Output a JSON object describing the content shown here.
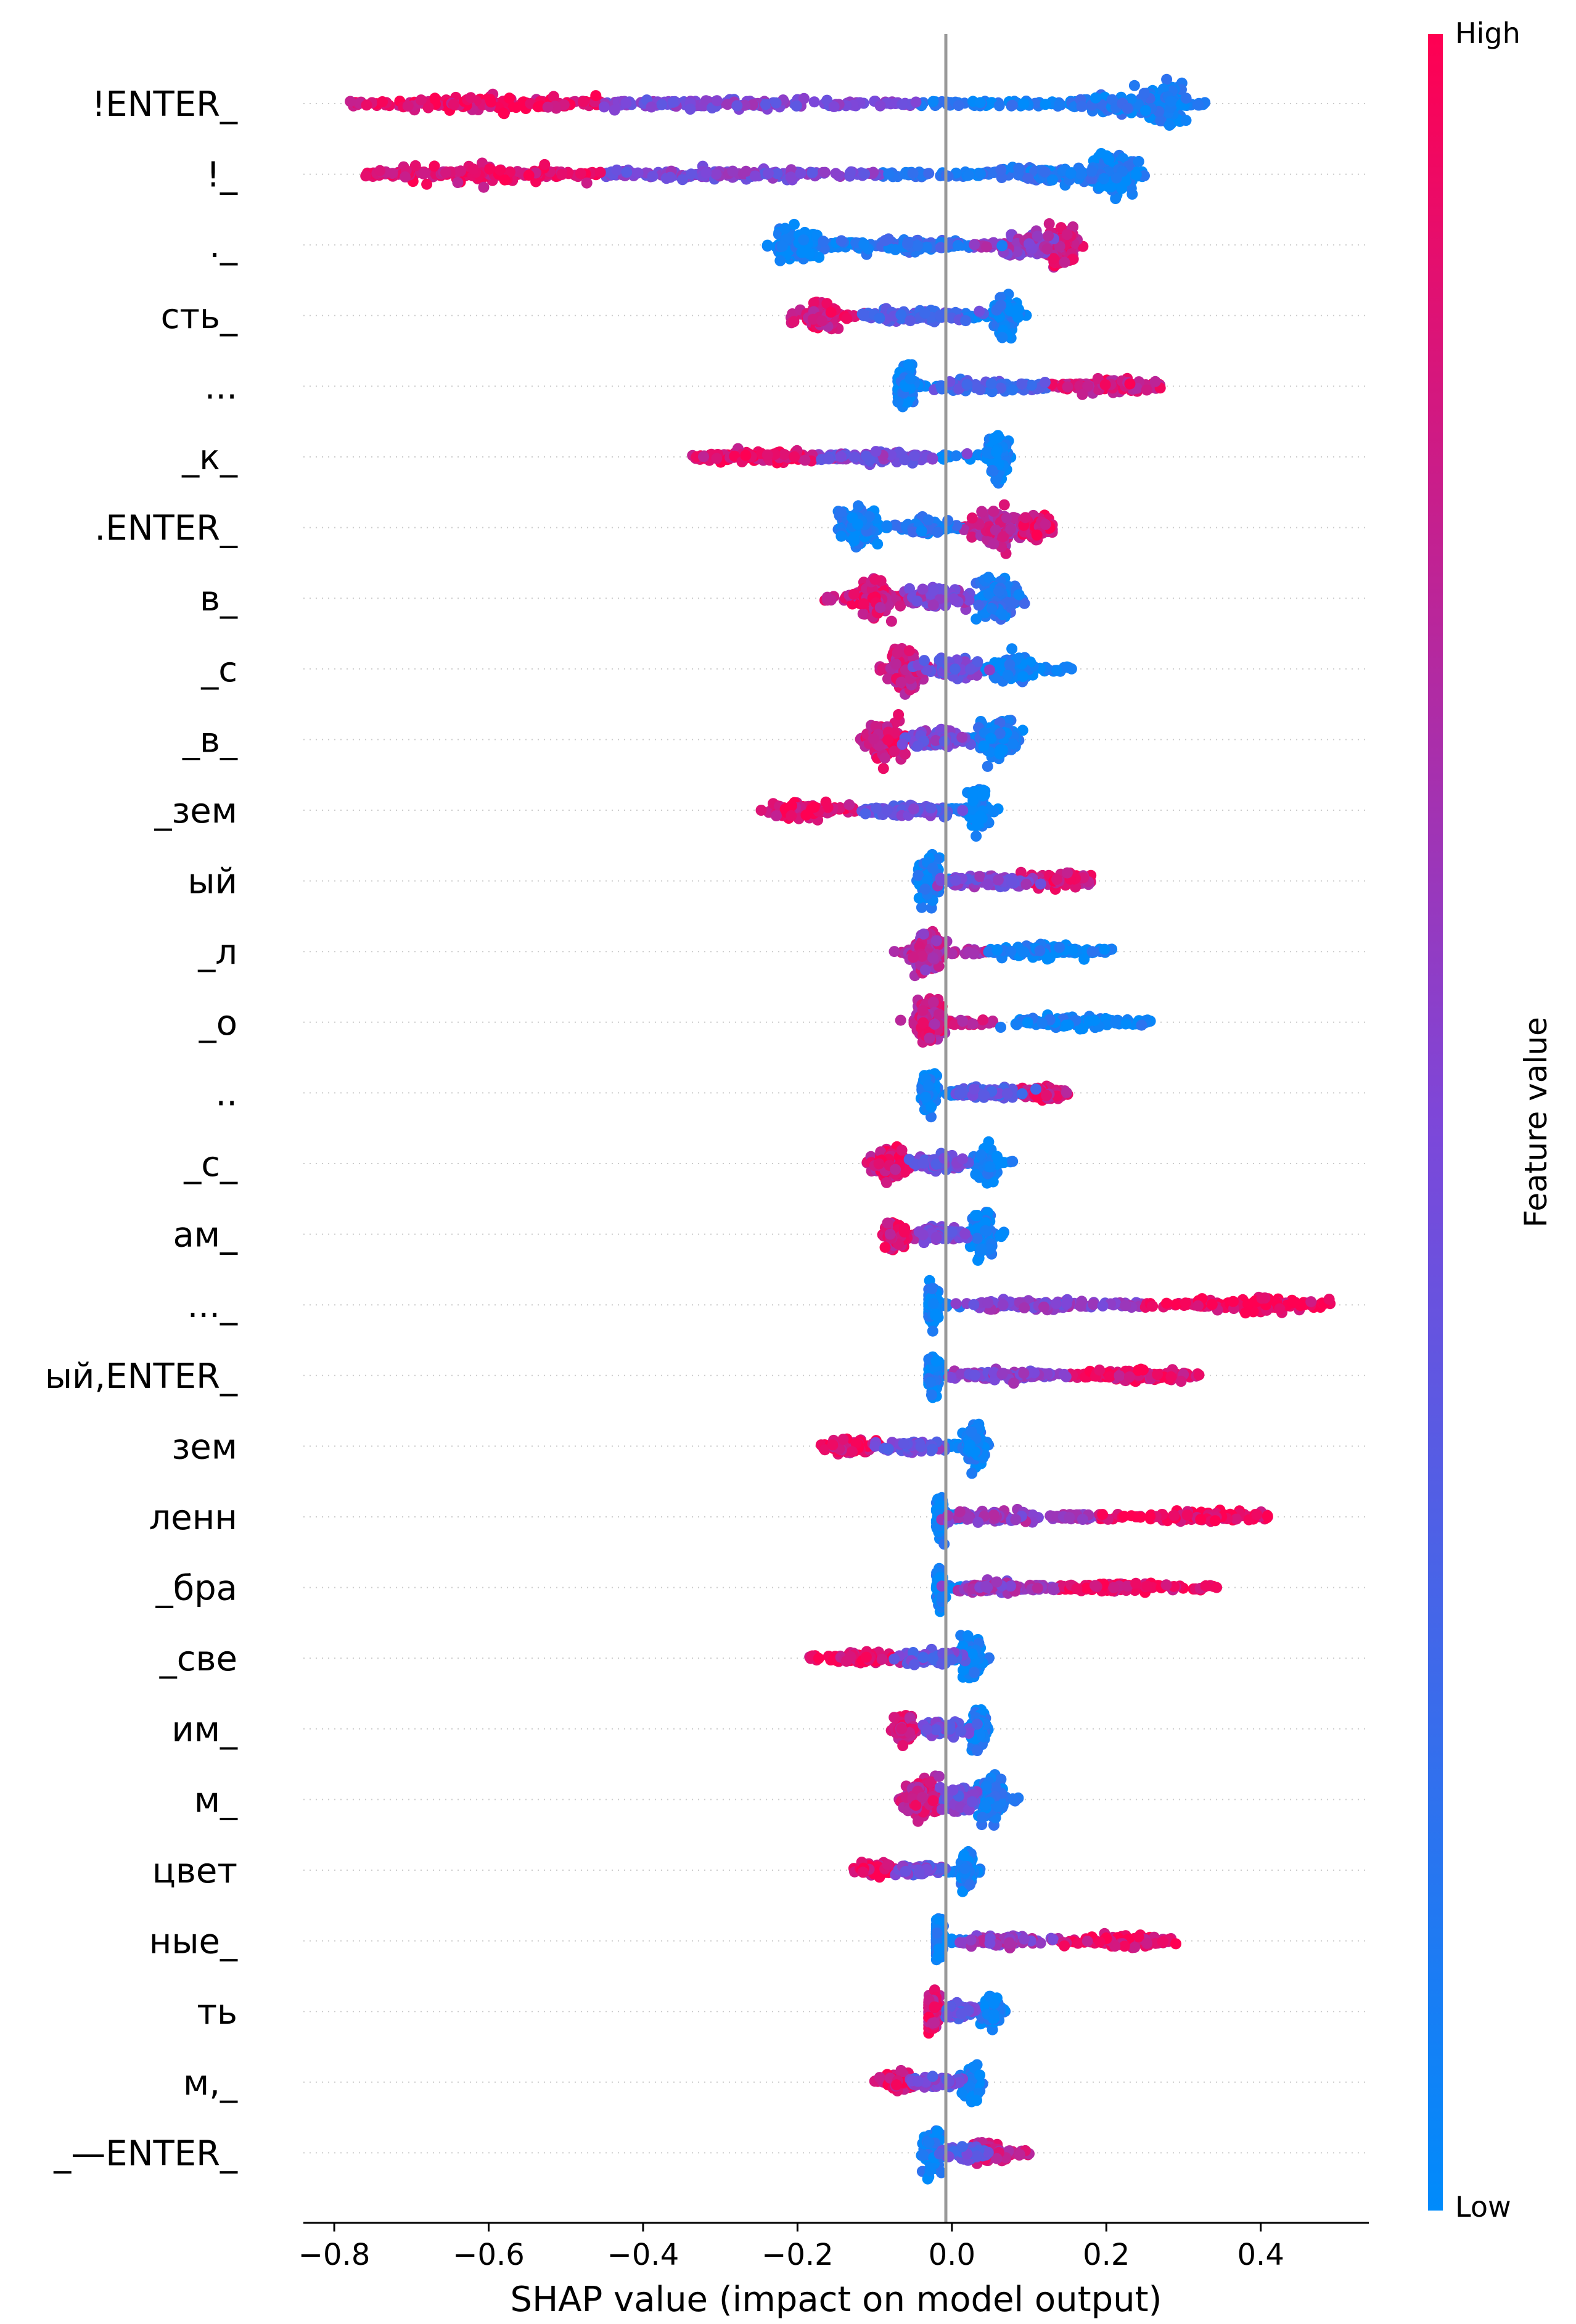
{
  "chart_data": {
    "type": "scatter",
    "subtype": "shap-beeswarm",
    "title": "",
    "xlabel": "SHAP value (impact on model output)",
    "ylabel": "",
    "xlim": [
      -0.84,
      0.54
    ],
    "xticks": [
      -0.8,
      -0.6,
      -0.4,
      -0.2,
      0.0,
      0.2,
      0.4
    ],
    "xtick_labels": [
      "−0.8",
      "−0.6",
      "−0.4",
      "−0.2",
      "0.0",
      "0.2",
      "0.4"
    ],
    "colorbar": {
      "label": "Feature value",
      "high_label": "High",
      "low_label": "Low",
      "low_color": "#008bfb",
      "high_color": "#ff0052"
    },
    "features": [
      {
        "name": "!ENTER_",
        "xmin": -0.78,
        "xmax": 0.33,
        "core": [
          {
            "x": 0.28,
            "w": 0.03,
            "h": 0.85,
            "c": 0.05
          },
          {
            "x": 0.22,
            "w": 0.06,
            "h": 0.45,
            "c": 0.1
          },
          {
            "x": -0.6,
            "w": 0.12,
            "h": 0.4,
            "c": 0.9
          },
          {
            "x": -0.3,
            "w": 0.15,
            "h": 0.25,
            "c": 0.5
          }
        ]
      },
      {
        "name": "!_",
        "xmin": -0.76,
        "xmax": 0.25,
        "core": [
          {
            "x": 0.21,
            "w": 0.03,
            "h": 0.85,
            "c": 0.05
          },
          {
            "x": 0.12,
            "w": 0.06,
            "h": 0.4,
            "c": 0.15
          },
          {
            "x": -0.6,
            "w": 0.12,
            "h": 0.4,
            "c": 0.9
          },
          {
            "x": -0.3,
            "w": 0.15,
            "h": 0.25,
            "c": 0.5
          }
        ]
      },
      {
        "name": "._",
        "xmin": -0.24,
        "xmax": 0.17,
        "core": [
          {
            "x": 0.14,
            "w": 0.02,
            "h": 0.85,
            "c": 0.85
          },
          {
            "x": 0.1,
            "w": 0.03,
            "h": 0.5,
            "c": 0.6
          },
          {
            "x": -0.2,
            "w": 0.03,
            "h": 0.75,
            "c": 0.05
          },
          {
            "x": -0.05,
            "w": 0.08,
            "h": 0.3,
            "c": 0.2
          }
        ]
      },
      {
        "name": "сть_",
        "xmin": -0.21,
        "xmax": 0.1,
        "core": [
          {
            "x": 0.07,
            "w": 0.015,
            "h": 0.85,
            "c": 0.05
          },
          {
            "x": -0.17,
            "w": 0.025,
            "h": 0.55,
            "c": 0.85
          },
          {
            "x": -0.05,
            "w": 0.08,
            "h": 0.25,
            "c": 0.35
          }
        ]
      },
      {
        "name": "...",
        "xmin": -0.07,
        "xmax": 0.27,
        "core": [
          {
            "x": -0.06,
            "w": 0.012,
            "h": 0.85,
            "c": 0.05
          },
          {
            "x": 0.2,
            "w": 0.05,
            "h": 0.3,
            "c": 0.85
          },
          {
            "x": 0.05,
            "w": 0.08,
            "h": 0.25,
            "c": 0.3
          }
        ]
      },
      {
        "name": "_к_",
        "xmin": -0.34,
        "xmax": 0.08,
        "core": [
          {
            "x": 0.06,
            "w": 0.012,
            "h": 0.85,
            "c": 0.05
          },
          {
            "x": -0.25,
            "w": 0.08,
            "h": 0.3,
            "c": 0.9
          },
          {
            "x": -0.1,
            "w": 0.08,
            "h": 0.25,
            "c": 0.5
          }
        ]
      },
      {
        "name": ".ENTER_",
        "xmin": -0.15,
        "xmax": 0.13,
        "core": [
          {
            "x": -0.12,
            "w": 0.025,
            "h": 0.85,
            "c": 0.05
          },
          {
            "x": 0.06,
            "w": 0.03,
            "h": 0.85,
            "c": 0.75
          },
          {
            "x": 0.11,
            "w": 0.02,
            "h": 0.45,
            "c": 0.9
          },
          {
            "x": -0.03,
            "w": 0.03,
            "h": 0.35,
            "c": 0.15
          }
        ]
      },
      {
        "name": "в_",
        "xmin": -0.17,
        "xmax": 0.1,
        "core": [
          {
            "x": -0.1,
            "w": 0.025,
            "h": 0.75,
            "c": 0.85
          },
          {
            "x": 0.06,
            "w": 0.025,
            "h": 0.85,
            "c": 0.15
          },
          {
            "x": -0.02,
            "w": 0.04,
            "h": 0.45,
            "c": 0.55
          }
        ]
      },
      {
        "name": "_с",
        "xmin": -0.1,
        "xmax": 0.16,
        "core": [
          {
            "x": -0.06,
            "w": 0.02,
            "h": 0.9,
            "c": 0.8
          },
          {
            "x": 0.08,
            "w": 0.03,
            "h": 0.65,
            "c": 0.05
          },
          {
            "x": 0.0,
            "w": 0.04,
            "h": 0.4,
            "c": 0.45
          }
        ]
      },
      {
        "name": "_в_",
        "xmin": -0.12,
        "xmax": 0.1,
        "core": [
          {
            "x": -0.085,
            "w": 0.025,
            "h": 0.85,
            "c": 0.85
          },
          {
            "x": 0.06,
            "w": 0.025,
            "h": 0.85,
            "c": 0.1
          },
          {
            "x": -0.02,
            "w": 0.04,
            "h": 0.45,
            "c": 0.5
          }
        ]
      },
      {
        "name": "_зем",
        "xmin": -0.25,
        "xmax": 0.06,
        "core": [
          {
            "x": 0.035,
            "w": 0.012,
            "h": 0.85,
            "c": 0.05
          },
          {
            "x": -0.19,
            "w": 0.04,
            "h": 0.35,
            "c": 0.9
          },
          {
            "x": -0.05,
            "w": 0.06,
            "h": 0.25,
            "c": 0.4
          }
        ]
      },
      {
        "name": "ый",
        "xmin": -0.05,
        "xmax": 0.18,
        "core": [
          {
            "x": -0.03,
            "w": 0.012,
            "h": 0.9,
            "c": 0.05
          },
          {
            "x": 0.14,
            "w": 0.04,
            "h": 0.35,
            "c": 0.85
          },
          {
            "x": 0.05,
            "w": 0.06,
            "h": 0.25,
            "c": 0.5
          }
        ]
      },
      {
        "name": "_л",
        "xmin": -0.08,
        "xmax": 0.21,
        "core": [
          {
            "x": -0.03,
            "w": 0.02,
            "h": 0.9,
            "c": 0.7
          },
          {
            "x": 0.12,
            "w": 0.06,
            "h": 0.3,
            "c": 0.05
          }
        ]
      },
      {
        "name": "_о",
        "xmin": -0.07,
        "xmax": 0.26,
        "core": [
          {
            "x": -0.03,
            "w": 0.015,
            "h": 0.9,
            "c": 0.8
          },
          {
            "x": 0.15,
            "w": 0.07,
            "h": 0.3,
            "c": 0.05
          }
        ]
      },
      {
        "name": "..",
        "xmin": -0.04,
        "xmax": 0.15,
        "core": [
          {
            "x": -0.03,
            "w": 0.01,
            "h": 0.85,
            "c": 0.05
          },
          {
            "x": 0.12,
            "w": 0.03,
            "h": 0.3,
            "c": 0.85
          },
          {
            "x": 0.04,
            "w": 0.05,
            "h": 0.25,
            "c": 0.35
          }
        ]
      },
      {
        "name": "_с_",
        "xmin": -0.11,
        "xmax": 0.08,
        "core": [
          {
            "x": -0.08,
            "w": 0.02,
            "h": 0.65,
            "c": 0.85
          },
          {
            "x": 0.045,
            "w": 0.012,
            "h": 0.85,
            "c": 0.05
          },
          {
            "x": -0.02,
            "w": 0.03,
            "h": 0.35,
            "c": 0.45
          }
        ]
      },
      {
        "name": "ам_",
        "xmin": -0.09,
        "xmax": 0.07,
        "core": [
          {
            "x": -0.07,
            "w": 0.015,
            "h": 0.6,
            "c": 0.85
          },
          {
            "x": 0.04,
            "w": 0.012,
            "h": 0.85,
            "c": 0.05
          },
          {
            "x": -0.01,
            "w": 0.03,
            "h": 0.35,
            "c": 0.45
          }
        ]
      },
      {
        "name": "..._",
        "xmin": -0.03,
        "xmax": 0.49,
        "core": [
          {
            "x": -0.025,
            "w": 0.008,
            "h": 0.85,
            "c": 0.05
          },
          {
            "x": 0.4,
            "w": 0.08,
            "h": 0.3,
            "c": 0.95
          },
          {
            "x": 0.1,
            "w": 0.08,
            "h": 0.25,
            "c": 0.55
          }
        ]
      },
      {
        "name": "ый,ENTER_",
        "xmin": -0.03,
        "xmax": 0.32,
        "core": [
          {
            "x": -0.025,
            "w": 0.008,
            "h": 0.85,
            "c": 0.05
          },
          {
            "x": 0.24,
            "w": 0.06,
            "h": 0.3,
            "c": 0.9
          },
          {
            "x": 0.06,
            "w": 0.06,
            "h": 0.25,
            "c": 0.55
          }
        ]
      },
      {
        "name": "зем",
        "xmin": -0.17,
        "xmax": 0.05,
        "core": [
          {
            "x": 0.03,
            "w": 0.012,
            "h": 0.85,
            "c": 0.05
          },
          {
            "x": -0.13,
            "w": 0.03,
            "h": 0.35,
            "c": 0.9
          },
          {
            "x": -0.05,
            "w": 0.04,
            "h": 0.25,
            "c": 0.45
          }
        ]
      },
      {
        "name": "ленн",
        "xmin": -0.02,
        "xmax": 0.41,
        "core": [
          {
            "x": -0.015,
            "w": 0.006,
            "h": 0.85,
            "c": 0.05
          },
          {
            "x": 0.33,
            "w": 0.07,
            "h": 0.25,
            "c": 0.95
          },
          {
            "x": 0.05,
            "w": 0.05,
            "h": 0.25,
            "c": 0.6
          }
        ]
      },
      {
        "name": "_бра",
        "xmin": -0.02,
        "xmax": 0.35,
        "core": [
          {
            "x": -0.015,
            "w": 0.006,
            "h": 0.85,
            "c": 0.05
          },
          {
            "x": 0.22,
            "w": 0.08,
            "h": 0.25,
            "c": 0.92
          },
          {
            "x": 0.05,
            "w": 0.05,
            "h": 0.25,
            "c": 0.6
          }
        ]
      },
      {
        "name": "_све",
        "xmin": -0.19,
        "xmax": 0.05,
        "core": [
          {
            "x": 0.025,
            "w": 0.012,
            "h": 0.85,
            "c": 0.05
          },
          {
            "x": -0.12,
            "w": 0.04,
            "h": 0.25,
            "c": 0.9
          },
          {
            "x": -0.03,
            "w": 0.04,
            "h": 0.25,
            "c": 0.4
          }
        ]
      },
      {
        "name": "им_",
        "xmin": -0.08,
        "xmax": 0.05,
        "core": [
          {
            "x": 0.035,
            "w": 0.01,
            "h": 0.85,
            "c": 0.05
          },
          {
            "x": -0.06,
            "w": 0.012,
            "h": 0.55,
            "c": 0.85
          },
          {
            "x": -0.01,
            "w": 0.03,
            "h": 0.3,
            "c": 0.45
          }
        ]
      },
      {
        "name": "м_",
        "xmin": -0.07,
        "xmax": 0.09,
        "core": [
          {
            "x": -0.04,
            "w": 0.02,
            "h": 0.9,
            "c": 0.8
          },
          {
            "x": 0.05,
            "w": 0.015,
            "h": 0.85,
            "c": 0.1
          },
          {
            "x": 0.01,
            "w": 0.02,
            "h": 0.5,
            "c": 0.45
          }
        ]
      },
      {
        "name": "цвет",
        "xmin": -0.13,
        "xmax": 0.04,
        "core": [
          {
            "x": 0.02,
            "w": 0.008,
            "h": 0.85,
            "c": 0.05
          },
          {
            "x": -0.1,
            "w": 0.02,
            "h": 0.3,
            "c": 0.9
          },
          {
            "x": -0.04,
            "w": 0.03,
            "h": 0.25,
            "c": 0.45
          }
        ]
      },
      {
        "name": "ные_",
        "xmin": -0.02,
        "xmax": 0.29,
        "core": [
          {
            "x": -0.018,
            "w": 0.006,
            "h": 0.85,
            "c": 0.05
          },
          {
            "x": 0.22,
            "w": 0.06,
            "h": 0.3,
            "c": 0.9
          },
          {
            "x": 0.06,
            "w": 0.05,
            "h": 0.25,
            "c": 0.6
          }
        ]
      },
      {
        "name": "ть",
        "xmin": -0.03,
        "xmax": 0.07,
        "core": [
          {
            "x": -0.025,
            "w": 0.008,
            "h": 0.85,
            "c": 0.85
          },
          {
            "x": 0.05,
            "w": 0.012,
            "h": 0.6,
            "c": 0.05
          },
          {
            "x": 0.01,
            "w": 0.02,
            "h": 0.3,
            "c": 0.4
          }
        ]
      },
      {
        "name": "м,_",
        "xmin": -0.1,
        "xmax": 0.04,
        "core": [
          {
            "x": 0.025,
            "w": 0.01,
            "h": 0.85,
            "c": 0.05
          },
          {
            "x": -0.07,
            "w": 0.02,
            "h": 0.4,
            "c": 0.9
          },
          {
            "x": -0.02,
            "w": 0.03,
            "h": 0.25,
            "c": 0.45
          }
        ]
      },
      {
        "name": "_—ENTER_",
        "xmin": -0.04,
        "xmax": 0.1,
        "core": [
          {
            "x": -0.025,
            "w": 0.012,
            "h": 0.85,
            "c": 0.05
          },
          {
            "x": 0.05,
            "w": 0.02,
            "h": 0.45,
            "c": 0.8
          },
          {
            "x": 0.02,
            "w": 0.03,
            "h": 0.3,
            "c": 0.35
          }
        ]
      }
    ]
  }
}
